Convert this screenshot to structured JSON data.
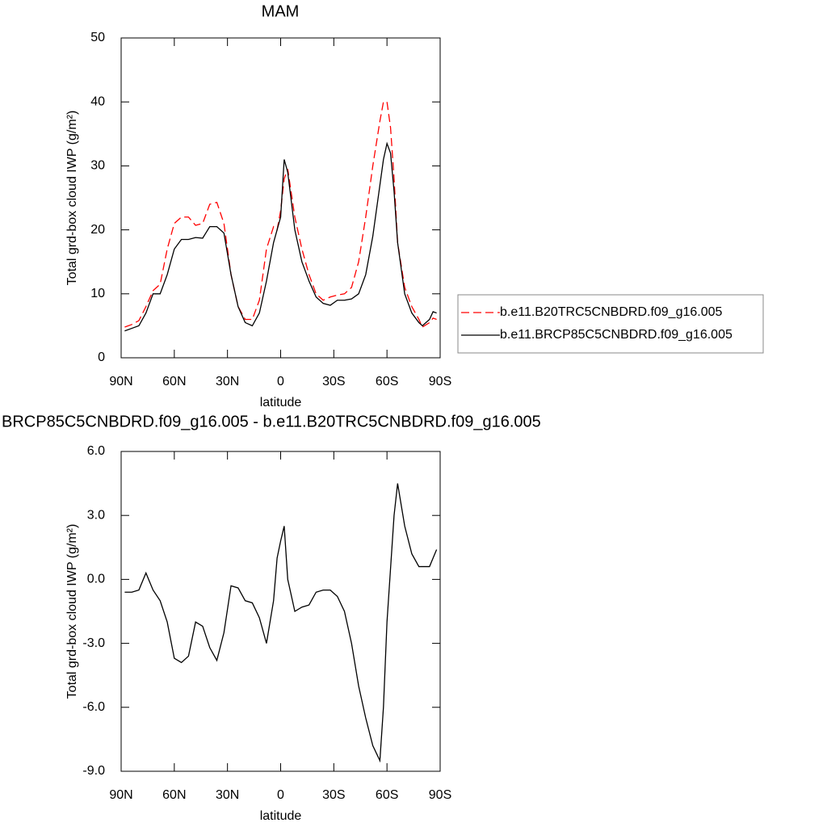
{
  "chart_data": [
    {
      "type": "line",
      "title": "MAM",
      "xlabel": "latitude",
      "ylabel": "Total grd-box cloud IWP (g/m²)",
      "x": [
        88,
        84,
        80,
        76,
        72,
        68,
        64,
        60,
        56,
        52,
        48,
        44,
        40,
        36,
        32,
        28,
        24,
        20,
        16,
        12,
        8,
        4,
        2,
        0,
        -2,
        -4,
        -8,
        -12,
        -16,
        -20,
        -24,
        -28,
        -32,
        -36,
        -40,
        -44,
        -48,
        -52,
        -56,
        -58,
        -60,
        -62,
        -64,
        -66,
        -70,
        -74,
        -78,
        -80,
        -84,
        -86,
        -88
      ],
      "series": [
        {
          "name": "b.e11.B20TRC5CNBDRD.f09_g16.005",
          "color": "#ff0000",
          "dash": "dashed",
          "values": [
            4.8,
            5.2,
            5.8,
            8,
            10.5,
            11.5,
            17,
            21,
            22,
            22,
            20.7,
            21,
            24,
            24.3,
            21,
            13,
            8,
            6,
            6,
            9,
            17,
            20.5,
            20,
            23,
            28,
            29.5,
            22,
            17,
            13,
            10,
            9,
            9.5,
            9.8,
            10,
            11,
            15,
            22,
            30,
            37,
            40,
            40,
            36,
            28,
            18,
            11,
            8,
            6,
            4.8,
            5.5,
            6.2,
            6
          ]
        },
        {
          "name": "b.e11.BRCP85C5CNBDRD.f09_g16.005",
          "color": "#000000",
          "dash": "solid",
          "values": [
            4.2,
            4.6,
            5,
            7,
            10,
            10,
            13,
            17,
            18.5,
            18.5,
            18.8,
            18.7,
            20.5,
            20.5,
            19.5,
            13,
            8,
            5.5,
            5,
            7,
            12,
            18,
            20,
            22,
            31,
            29,
            20,
            15,
            12,
            9.5,
            8.5,
            8.2,
            9,
            9,
            9.2,
            10,
            13,
            19,
            27,
            31,
            33.5,
            32,
            26,
            18,
            10,
            7,
            5.5,
            5,
            6,
            7.2,
            7
          ]
        }
      ],
      "xlim": [
        90,
        -90
      ],
      "xticks": [
        {
          "value": 90,
          "label": "90N"
        },
        {
          "value": 60,
          "label": "60N"
        },
        {
          "value": 30,
          "label": "30N"
        },
        0,
        {
          "value": -30,
          "label": "30S"
        },
        {
          "value": -60,
          "label": "60S"
        },
        {
          "value": -90,
          "label": "90S"
        }
      ],
      "ylim": [
        0,
        50
      ],
      "yticks": [
        0,
        10,
        20,
        30,
        40,
        50
      ],
      "legend": "right"
    },
    {
      "type": "line",
      "title": "BRCP85C5CNBDRD.f09_g16.005 - b.e11.B20TRC5CNBDRD.f09_g16.005",
      "xlabel": "latitude",
      "ylabel": "Total grd-box cloud IWP (g/m²)",
      "x": [
        88,
        84,
        80,
        76,
        72,
        68,
        64,
        60,
        56,
        52,
        48,
        44,
        40,
        36,
        32,
        28,
        24,
        20,
        16,
        12,
        8,
        4,
        2,
        0,
        -2,
        -4,
        -8,
        -12,
        -16,
        -20,
        -24,
        -28,
        -32,
        -36,
        -40,
        -44,
        -48,
        -52,
        -56,
        -58,
        -60,
        -62,
        -64,
        -66,
        -70,
        -74,
        -78,
        -80,
        -84,
        -86,
        -88
      ],
      "series": [
        {
          "color": "#000000",
          "dash": "solid",
          "values": [
            -0.6,
            -0.6,
            -0.5,
            0.3,
            -0.5,
            -1,
            -2,
            -3.7,
            -3.9,
            -3.6,
            -2,
            -2.2,
            -3.2,
            -3.8,
            -2.5,
            -0.3,
            -0.4,
            -1,
            -1.1,
            -1.8,
            -3,
            -1,
            1,
            1.8,
            2.5,
            0,
            -1.5,
            -1.3,
            -1.2,
            -0.6,
            -0.5,
            -0.5,
            -0.8,
            -1.5,
            -3,
            -5,
            -6.5,
            -7.8,
            -8.5,
            -6,
            -2,
            0.5,
            3,
            4.5,
            2.5,
            1.2,
            0.6,
            0.6,
            0.6,
            1,
            1.4
          ]
        }
      ],
      "xlim": [
        90,
        -90
      ],
      "xticks": [
        {
          "value": 90,
          "label": "90N"
        },
        {
          "value": 60,
          "label": "60N"
        },
        {
          "value": 30,
          "label": "30N"
        },
        0,
        {
          "value": -30,
          "label": "30S"
        },
        {
          "value": -60,
          "label": "60S"
        },
        {
          "value": -90,
          "label": "90S"
        }
      ],
      "ylim": [
        -9,
        6
      ],
      "yticks": [
        {
          "value": -9,
          "label": "-9.0"
        },
        {
          "value": -6,
          "label": "-6.0"
        },
        {
          "value": -3,
          "label": "-3.0"
        },
        {
          "value": 0,
          "label": "0.0"
        },
        {
          "value": 3,
          "label": "3.0"
        },
        {
          "value": 6,
          "label": "6.0"
        }
      ]
    }
  ]
}
